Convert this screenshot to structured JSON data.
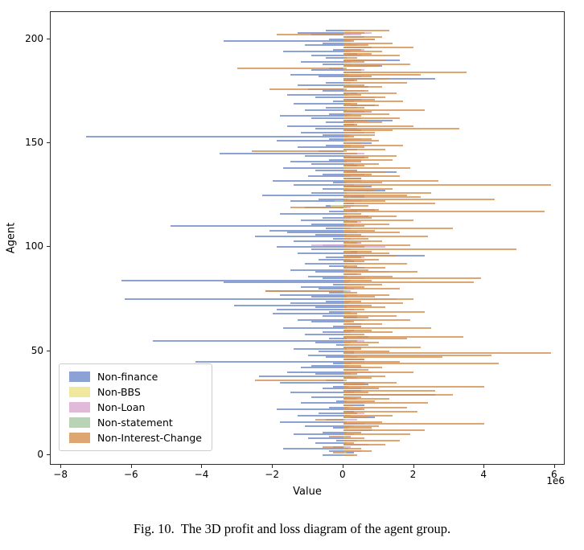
{
  "figure": {
    "caption_label": "Fig. 10.",
    "caption_text": "The 3D profit and loss diagram of the agent group.",
    "xlabel": "Value",
    "ylabel": "Agent",
    "offset_label": "1e6"
  },
  "chart_data": {
    "type": "bar",
    "orientation": "horizontal",
    "title": "",
    "xlabel": "Value",
    "ylabel": "Agent",
    "values_unit": "x 1e6",
    "xlim": [
      -8.3,
      6.3
    ],
    "ylim": [
      -5,
      213
    ],
    "x_ticks": [
      -8,
      -6,
      -4,
      -2,
      0,
      2,
      4,
      6
    ],
    "y_ticks": [
      0,
      50,
      100,
      150,
      200
    ],
    "grid": false,
    "legend_position": "lower left",
    "n_agents": 205,
    "series": [
      {
        "name": "Non-finance",
        "color": "#6f8bca",
        "values": [
          -0.6,
          0.3,
          -0.4,
          -1.7,
          -0.3,
          0.5,
          -0.8,
          -0.2,
          -1.0,
          0.2,
          -1.4,
          -0.6,
          0.8,
          -0.3,
          -1.1,
          0.4,
          -1.8,
          -0.5,
          0.9,
          -1.3,
          -0.7,
          0.3,
          -1.9,
          -0.4,
          0.6,
          -1.2,
          -0.2,
          0.4,
          -0.9,
          2.6,
          -1.5,
          0.5,
          -0.6,
          -0.3,
          0.7,
          -1.8,
          -0.5,
          0.3,
          -2.4,
          -0.8,
          -1.6,
          0.4,
          -1.2,
          -0.9,
          -0.3,
          -4.2,
          0.6,
          -0.5,
          -1.0,
          0.3,
          -0.7,
          -1.4,
          0.5,
          -0.2,
          -0.8,
          -5.4,
          -0.4,
          0.7,
          -1.1,
          -0.6,
          0.3,
          -1.7,
          -0.3,
          0.5,
          -0.9,
          -1.3,
          0.4,
          -0.6,
          -2.0,
          -0.4,
          -1.9,
          -0.8,
          -3.1,
          -1.5,
          -0.5,
          -6.2,
          -0.9,
          -1.8,
          -0.4,
          -2.2,
          -0.7,
          -1.2,
          -0.3,
          -3.4,
          -6.3,
          -0.6,
          -1.0,
          0.4,
          -0.8,
          -1.5,
          0.6,
          -0.4,
          -1.1,
          0.3,
          -0.7,
          -0.5,
          2.3,
          -1.3,
          0.4,
          -0.9,
          -1.9,
          -0.6,
          0.5,
          -1.4,
          -0.3,
          -2.5,
          -0.8,
          -1.6,
          -2.1,
          -0.5,
          -4.9,
          -0.9,
          0.4,
          -1.2,
          -0.6,
          0.7,
          -1.8,
          -0.4,
          0.9,
          -1.1,
          -0.5,
          0.3,
          -1.5,
          -0.7,
          0.6,
          -2.3,
          -0.9,
          1.2,
          -0.6,
          0.8,
          -1.4,
          -0.3,
          -2.0,
          0.5,
          -1.0,
          -0.6,
          1.5,
          -0.8,
          -1.7,
          0.4,
          -0.9,
          -1.5,
          -0.4,
          0.6,
          -1.1,
          -3.5,
          -0.7,
          0.4,
          -1.3,
          -0.5,
          0.8,
          -1.9,
          -0.4,
          -7.3,
          -0.6,
          -1.2,
          0.5,
          -0.8,
          -1.6,
          0.3,
          -0.5,
          1.4,
          -0.9,
          -1.8,
          -0.4,
          0.6,
          -1.1,
          -0.5,
          0.9,
          -1.4,
          -0.3,
          0.5,
          -0.8,
          -1.6,
          0.4,
          -0.6,
          -1.0,
          0.7,
          -1.3,
          -0.5,
          0.3,
          2.6,
          -0.7,
          -1.5,
          0.5,
          -0.9,
          -0.4,
          1.1,
          -0.6,
          -1.2,
          1.6,
          -0.5,
          -0.9,
          0.4,
          -1.7,
          -0.3,
          0.8,
          -1.1,
          -0.6,
          -3.4,
          -0.4,
          0.6,
          -0.9,
          -1.3,
          -0.5
        ]
      },
      {
        "name": "Non-BBS",
        "color": "#ece385",
        "values": [
          0.1,
          0.0,
          0.2,
          0.05,
          0.0,
          0.15,
          0.1,
          0.0,
          0.2,
          0.1,
          0.1,
          0.0,
          0.2,
          0.05,
          0.3,
          0.15,
          0.1,
          0.0,
          0.2,
          0.1,
          0.1,
          0.0,
          0.2,
          0.05,
          0.0,
          0.15,
          0.1,
          0.0,
          0.2,
          0.1,
          0.1,
          0.0,
          0.2,
          0.05,
          0.0,
          0.15,
          0.1,
          0.0,
          0.2,
          0.1,
          0.1,
          0.0,
          0.2,
          0.05,
          0.0,
          0.15,
          0.1,
          0.0,
          0.2,
          0.1,
          0.1,
          0.0,
          0.2,
          0.05,
          0.0,
          0.15,
          0.1,
          0.0,
          0.2,
          0.1,
          0.1,
          0.0,
          0.2,
          0.05,
          0.0,
          0.15,
          0.1,
          0.0,
          0.2,
          0.1,
          0.1,
          0.0,
          0.2,
          0.05,
          0.0,
          0.15,
          0.1,
          0.0,
          0.2,
          0.1,
          0.1,
          0.0,
          0.2,
          0.05,
          0.0,
          0.15,
          0.1,
          0.0,
          0.2,
          0.1,
          0.1,
          0.0,
          0.2,
          0.05,
          0.0,
          0.15,
          0.1,
          0.0,
          0.2,
          0.1,
          0.1,
          0.0,
          0.2,
          0.05,
          0.0,
          0.15,
          0.1,
          0.0,
          0.2,
          0.1,
          0.1,
          0.0,
          0.2,
          0.05,
          0.0,
          0.15,
          0.1,
          0.0,
          0.2,
          0.1,
          -0.35,
          0.0,
          0.2,
          0.05,
          0.0,
          0.15,
          0.1,
          0.0,
          0.2,
          0.1,
          0.1,
          0.0,
          0.2,
          0.05,
          0.0,
          0.15,
          0.1,
          0.0,
          0.2,
          0.1,
          0.1,
          0.0,
          0.2,
          0.05,
          0.0,
          0.15,
          0.1,
          0.0,
          0.2,
          0.1,
          0.1,
          0.0,
          0.2,
          0.05,
          0.0,
          0.15,
          0.1,
          0.0,
          0.2,
          0.1,
          0.1,
          0.0,
          0.2,
          0.05,
          0.0,
          0.15,
          0.1,
          0.0,
          0.2,
          0.1,
          0.1,
          0.0,
          0.2,
          0.05,
          0.0,
          0.15,
          0.1,
          0.0,
          0.2,
          0.1,
          0.1,
          0.0,
          0.2,
          0.05,
          0.0,
          0.15,
          0.1,
          0.0,
          0.2,
          0.1,
          0.1,
          0.0,
          0.2,
          0.05,
          0.0,
          0.15,
          0.1,
          0.0,
          0.2,
          0.1,
          0.1,
          0.0,
          0.2,
          0.05,
          0.0
        ]
      },
      {
        "name": "Non-Loan",
        "color": "#d9a8cf",
        "values": [
          0.3,
          0.1,
          0.5,
          0.0,
          0.2,
          0.7,
          0.1,
          0.4,
          0.0,
          0.2,
          0.3,
          0.1,
          0.5,
          0.0,
          0.2,
          0.6,
          0.1,
          0.4,
          0.0,
          0.2,
          0.6,
          0.1,
          0.5,
          0.0,
          0.2,
          0.6,
          0.1,
          0.4,
          0.0,
          0.2,
          0.3,
          0.1,
          0.5,
          0.0,
          0.2,
          0.6,
          0.1,
          0.4,
          0.0,
          0.2,
          0.8,
          0.1,
          0.5,
          0.0,
          0.2,
          0.6,
          0.1,
          0.4,
          0.0,
          0.2,
          0.3,
          0.1,
          0.5,
          0.0,
          0.2,
          0.6,
          0.1,
          0.4,
          0.0,
          0.2,
          0.3,
          0.1,
          0.5,
          0.0,
          0.2,
          0.6,
          0.1,
          0.4,
          0.0,
          0.2,
          0.3,
          0.1,
          0.5,
          0.0,
          0.2,
          1.5,
          0.1,
          0.4,
          0.0,
          0.2,
          0.3,
          0.1,
          0.5,
          0.0,
          0.2,
          0.6,
          0.1,
          0.4,
          1.3,
          0.2,
          0.3,
          0.1,
          0.5,
          0.0,
          0.2,
          0.6,
          0.1,
          0.4,
          0.0,
          0.2,
          1.2,
          -0.9,
          0.5,
          0.0,
          0.2,
          0.6,
          0.1,
          0.4,
          0.0,
          0.2,
          0.3,
          0.1,
          0.5,
          0.0,
          0.2,
          0.6,
          0.1,
          0.4,
          0.0,
          0.2,
          0.3,
          0.1,
          0.5,
          0.0,
          0.2,
          0.6,
          0.1,
          0.4,
          0.0,
          0.2,
          0.3,
          0.1,
          0.5,
          0.0,
          0.2,
          0.6,
          0.1,
          0.4,
          0.0,
          0.2,
          0.3,
          0.1,
          0.5,
          0.0,
          0.2,
          0.6,
          0.1,
          0.4,
          0.0,
          0.2,
          0.3,
          0.1,
          0.5,
          0.0,
          0.2,
          0.6,
          0.1,
          0.4,
          0.0,
          0.2,
          0.3,
          0.1,
          0.5,
          0.0,
          0.2,
          0.6,
          0.1,
          0.4,
          0.0,
          0.2,
          0.3,
          0.1,
          0.9,
          0.0,
          0.2,
          0.6,
          0.1,
          0.4,
          0.0,
          0.2,
          0.3,
          0.1,
          0.5,
          0.0,
          0.2,
          0.6,
          0.1,
          0.4,
          0.0,
          0.2,
          0.3,
          0.1,
          0.5,
          0.0,
          0.2,
          0.6,
          0.1,
          0.4,
          0.0,
          0.2,
          0.9,
          0.1,
          0.5,
          0.8,
          0.2
        ]
      },
      {
        "name": "Non-statement",
        "color": "#a8c9a2",
        "values": [
          0.05,
          0.1,
          0.0,
          0.15,
          0.05,
          0.0,
          0.1,
          0.05,
          0.0,
          0.1,
          0.05,
          0.1,
          0.0,
          0.15,
          0.05,
          0.0,
          0.1,
          0.05,
          0.0,
          0.1,
          0.05,
          0.1,
          0.0,
          0.15,
          0.05,
          0.0,
          0.1,
          0.05,
          0.0,
          0.1,
          0.05,
          0.1,
          0.0,
          0.15,
          0.05,
          0.0,
          0.1,
          0.05,
          0.0,
          0.1,
          0.05,
          0.1,
          0.0,
          0.15,
          0.05,
          0.0,
          0.1,
          0.05,
          0.0,
          0.1,
          0.05,
          0.1,
          0.0,
          0.15,
          0.05,
          0.0,
          0.1,
          0.05,
          0.0,
          0.1,
          0.05,
          0.1,
          0.0,
          0.15,
          0.05,
          0.0,
          0.1,
          0.05,
          0.0,
          0.1,
          0.05,
          0.1,
          0.0,
          0.15,
          0.05,
          0.0,
          0.1,
          0.05,
          0.0,
          0.1,
          0.05,
          0.1,
          0.0,
          0.15,
          0.05,
          0.0,
          0.1,
          0.05,
          0.0,
          0.1,
          0.05,
          0.1,
          0.0,
          0.15,
          0.05,
          0.0,
          0.1,
          0.05,
          0.0,
          0.1,
          0.05,
          0.1,
          0.0,
          0.15,
          0.05,
          0.0,
          0.1,
          0.05,
          0.0,
          0.1,
          0.05,
          0.1,
          0.0,
          0.15,
          0.05,
          0.0,
          0.1,
          0.05,
          0.0,
          0.1,
          0.05,
          0.1,
          -0.25,
          0.15,
          0.05,
          0.0,
          0.1,
          0.05,
          0.0,
          0.1,
          0.05,
          0.1,
          0.0,
          0.15,
          0.05,
          0.0,
          0.1,
          0.05,
          0.0,
          0.1,
          0.05,
          0.1,
          0.0,
          0.15,
          0.05,
          0.0,
          0.1,
          0.05,
          0.0,
          0.1,
          0.05,
          0.1,
          0.0,
          0.15,
          0.05,
          0.0,
          0.1,
          0.05,
          0.0,
          0.1,
          0.05,
          0.1,
          0.0,
          0.15,
          0.05,
          0.0,
          0.1,
          0.05,
          0.0,
          0.1,
          0.05,
          0.1,
          0.0,
          0.15,
          0.05,
          0.0,
          0.1,
          0.05,
          0.0,
          0.1,
          0.05,
          0.1,
          0.0,
          0.15,
          0.05,
          0.0,
          0.1,
          0.05,
          0.0,
          0.1,
          0.05,
          0.1,
          0.0,
          0.15,
          0.05,
          0.0,
          0.1,
          0.05,
          0.0,
          0.1,
          0.05,
          0.1,
          0.0,
          0.15,
          0.05
        ]
      },
      {
        "name": "Non-Interest-Change",
        "color": "#d6904f",
        "values": [
          0.4,
          -0.3,
          0.8,
          0.5,
          -0.6,
          1.2,
          0.3,
          1.6,
          0.6,
          -0.4,
          1.9,
          0.5,
          2.3,
          0.8,
          1.0,
          4.0,
          1.1,
          -0.8,
          0.7,
          1.4,
          0.4,
          2.1,
          0.6,
          1.8,
          0.3,
          2.4,
          0.9,
          1.3,
          0.5,
          3.1,
          0.7,
          2.6,
          1.0,
          4.0,
          0.6,
          1.5,
          -2.5,
          0.8,
          1.2,
          0.4,
          2.0,
          0.7,
          1.1,
          0.5,
          4.4,
          1.6,
          0.6,
          2.8,
          4.2,
          5.9,
          1.3,
          0.5,
          2.2,
          0.7,
          1.0,
          0.4,
          1.8,
          3.4,
          0.6,
          1.4,
          0.8,
          2.5,
          0.5,
          1.1,
          0.3,
          1.9,
          0.7,
          1.5,
          0.4,
          2.3,
          0.6,
          1.2,
          0.8,
          1.7,
          0.5,
          2.0,
          0.9,
          1.3,
          0.4,
          -2.2,
          1.6,
          0.6,
          1.1,
          3.7,
          0.8,
          3.9,
          1.4,
          0.5,
          2.1,
          0.7,
          1.2,
          0.4,
          1.8,
          0.6,
          1.0,
          0.5,
          1.5,
          1.3,
          0.8,
          4.9,
          0.6,
          1.9,
          0.4,
          1.1,
          0.7,
          2.4,
          0.5,
          1.6,
          0.9,
          3.1,
          0.6,
          1.3,
          0.4,
          2.0,
          0.8,
          1.5,
          0.5,
          5.7,
          1.0,
          -1.5,
          0.7,
          2.6,
          1.2,
          4.3,
          2.2,
          1.8,
          2.5,
          0.9,
          1.4,
          0.6,
          5.9,
          1.1,
          2.7,
          0.5,
          1.6,
          0.8,
          1.2,
          0.4,
          1.9,
          0.6,
          1.0,
          0.5,
          1.4,
          0.7,
          1.5,
          0.4,
          -2.6,
          1.2,
          0.6,
          1.7,
          0.5,
          1.0,
          0.8,
          0.3,
          0.9,
          0.9,
          1.4,
          3.3,
          2.0,
          0.4,
          1.1,
          0.7,
          1.6,
          0.5,
          1.3,
          0.8,
          2.3,
          0.6,
          1.0,
          0.4,
          1.7,
          0.9,
          1.2,
          0.5,
          1.5,
          0.7,
          -2.1,
          1.1,
          0.6,
          1.8,
          0.4,
          1.3,
          0.8,
          2.2,
          3.5,
          0.5,
          -3.0,
          1.0,
          1.9,
          0.6,
          1.2,
          0.4,
          1.6,
          0.8,
          1.1,
          0.5,
          2.0,
          0.7,
          1.4,
          0.3,
          0.9,
          1.1,
          -1.9,
          0.6,
          1.3
        ]
      }
    ]
  }
}
